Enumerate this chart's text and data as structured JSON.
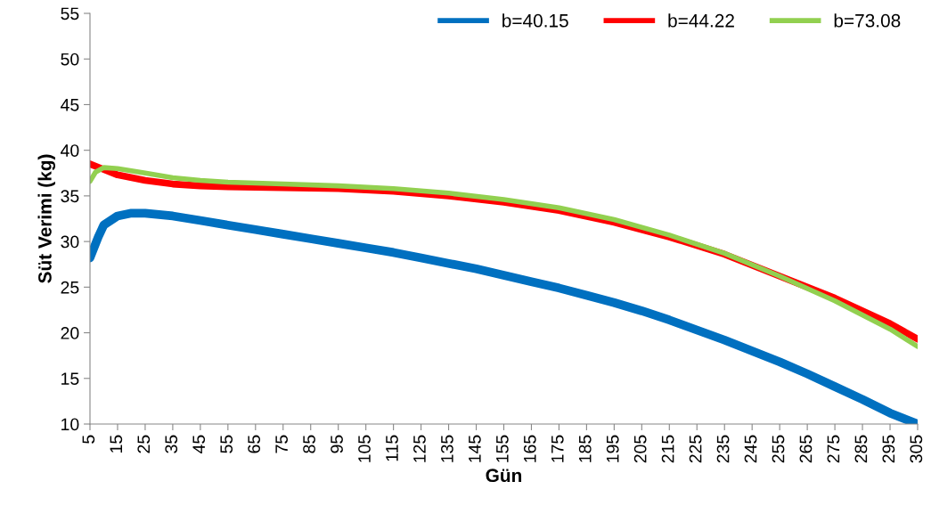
{
  "chart_data": {
    "type": "line",
    "xlabel": "Gün",
    "ylabel": "Süt Verimi (kg)",
    "xlim": [
      5,
      305
    ],
    "xticks": [
      5,
      15,
      25,
      35,
      45,
      55,
      65,
      75,
      85,
      95,
      105,
      115,
      125,
      135,
      145,
      155,
      165,
      175,
      185,
      195,
      205,
      215,
      225,
      235,
      245,
      255,
      265,
      275,
      285,
      295,
      305
    ],
    "ylim": [
      10,
      55
    ],
    "yticks": [
      10,
      15,
      20,
      25,
      30,
      35,
      40,
      45,
      50,
      55
    ],
    "grid": false,
    "legend": "top right",
    "marker": "none",
    "line_style": "solid",
    "series": [
      {
        "name": "b=40.15",
        "color": "#0070c0",
        "x": [
          5,
          8,
          10,
          15,
          20,
          25,
          35,
          45,
          55,
          65,
          75,
          85,
          95,
          105,
          115,
          125,
          135,
          145,
          155,
          165,
          175,
          185,
          195,
          205,
          215,
          225,
          235,
          245,
          255,
          265,
          275,
          285,
          295,
          305
        ],
        "values": [
          28.2,
          30.5,
          31.8,
          32.8,
          33.1,
          33.1,
          32.8,
          32.3,
          31.8,
          31.3,
          30.8,
          30.3,
          29.8,
          29.3,
          28.8,
          28.2,
          27.6,
          27.0,
          26.3,
          25.6,
          24.9,
          24.1,
          23.3,
          22.4,
          21.4,
          20.3,
          19.2,
          18.0,
          16.8,
          15.5,
          14.1,
          12.7,
          11.2,
          10.0
        ]
      },
      {
        "name": "b=44.22",
        "color": "#ff0000",
        "x": [
          5,
          10,
          15,
          25,
          35,
          45,
          55,
          75,
          95,
          115,
          135,
          155,
          175,
          195,
          215,
          235,
          255,
          275,
          295,
          305
        ],
        "values": [
          38.5,
          37.9,
          37.3,
          36.7,
          36.3,
          36.1,
          36.0,
          35.9,
          35.8,
          35.5,
          35.0,
          34.3,
          33.4,
          32.1,
          30.5,
          28.6,
          26.2,
          23.8,
          21.0,
          19.3
        ]
      },
      {
        "name": "b=73.08",
        "color": "#92d050",
        "x": [
          5,
          7,
          10,
          15,
          25,
          35,
          45,
          55,
          75,
          95,
          115,
          135,
          155,
          175,
          195,
          215,
          235,
          255,
          275,
          295,
          305
        ],
        "values": [
          36.6,
          37.6,
          38.1,
          38.0,
          37.5,
          37.0,
          36.7,
          36.5,
          36.3,
          36.1,
          35.8,
          35.3,
          34.6,
          33.7,
          32.4,
          30.7,
          28.7,
          26.2,
          23.5,
          20.4,
          18.5
        ]
      }
    ]
  }
}
